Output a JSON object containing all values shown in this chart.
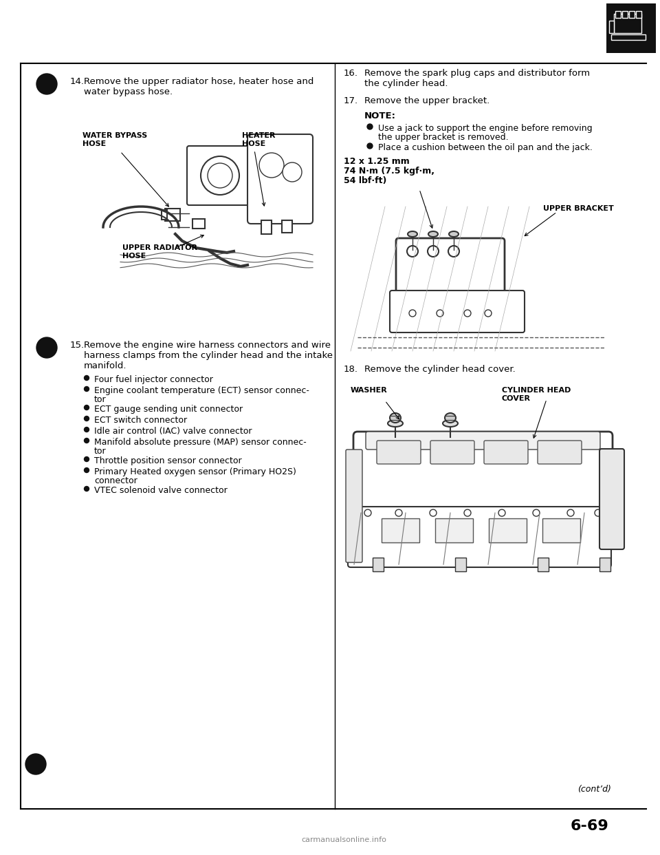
{
  "page_number": "6-69",
  "watermark": "carmanualsonline.info",
  "bg_color": "#ffffff",
  "step14_num": "14.",
  "step14_text_line1": "Remove the upper radiator hose, heater hose and",
  "step14_text_line2": "water bypass hose.",
  "step14_label1_line1": "WATER BYPASS",
  "step14_label1_line2": "HOSE",
  "step14_label2_line1": "HEATER",
  "step14_label2_line2": "HOSE",
  "step14_label3_line1": "UPPER RADIATOR",
  "step14_label3_line2": "HOSE",
  "step15_num": "15.",
  "step15_text_line1": "Remove the engine wire harness connectors and wire",
  "step15_text_line2": "harness clamps from the cylinder head and the intake",
  "step15_text_line3": "manifold.",
  "step15_bullets": [
    [
      "Four fuel injector connector"
    ],
    [
      "Engine coolant temperature (ECT) sensor connec-",
      "tor"
    ],
    [
      "ECT gauge sending unit connector"
    ],
    [
      "ECT switch connector"
    ],
    [
      "Idle air control (IAC) valve connector"
    ],
    [
      "Manifold absolute pressure (MAP) sensor connec-",
      "tor"
    ],
    [
      "Throttle position sensor connector"
    ],
    [
      "Primary Heated oxygen sensor (Primary HO2S)",
      "connector"
    ],
    [
      "VTEC solenoid valve connector"
    ]
  ],
  "step16_num": "16.",
  "step16_text_line1": "Remove the spark plug caps and distributor form",
  "step16_text_line2": "the cylinder head.",
  "step17_num": "17.",
  "step17_text": "Remove the upper bracket.",
  "note_title": "NOTE:",
  "note_bullets": [
    [
      "Use a jack to support the engine before removing",
      "the upper bracket is removed."
    ],
    [
      "Place a cushion between the oil pan and the jack."
    ]
  ],
  "torque_line1": "12 x 1.25 mm",
  "torque_line2": "74 N·m (7.5 kgf·m,",
  "torque_line3": "54 lbf·ft)",
  "step17_label": "UPPER BRACKET",
  "step18_num": "18.",
  "step18_text": "Remove the cylinder head cover.",
  "step18_label1": "WASHER",
  "step18_label2_line1": "CYLINDER HEAD",
  "step18_label2_line2": "COVER",
  "cont_text": "(cont’d)"
}
